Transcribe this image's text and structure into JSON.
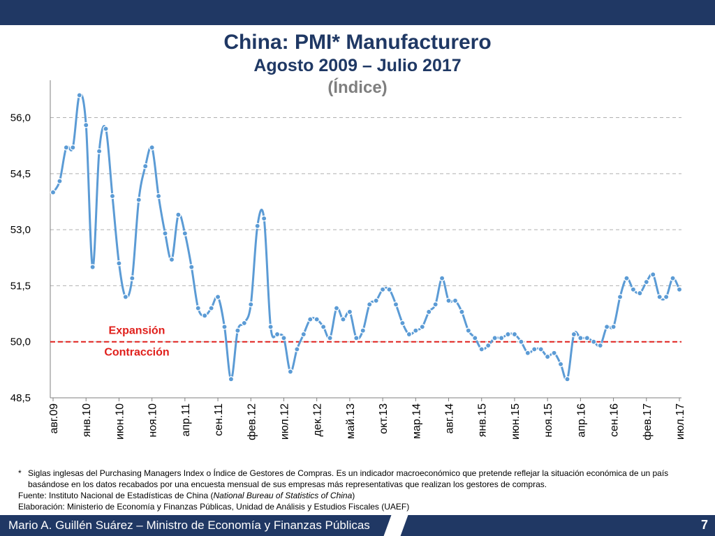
{
  "header": {
    "title": "China: PMI* Manufacturero",
    "subtitle": "Agosto 2009 – Julio 2017",
    "unit": "(Índice)"
  },
  "notes": {
    "star": "*",
    "definition": "Siglas inglesas del Purchasing Managers Index o  Índice de Gestores de Compras. Es un indicador macroeconómico que pretende reflejar la situación económica de un país basándose en los datos recabados por una encuesta mensual de sus empresas más representativas que realizan los gestores de compras.",
    "source_prefix": "Fuente: Instituto Nacional de Estadísticas de China (",
    "source_italic": "National Bureau of Statistics of China",
    "source_suffix": ")",
    "elaboration": "Elaboración: Ministerio de Economía y Finanzas Públicas, Unidad de Análisis y Estudios Fiscales (UAEF)"
  },
  "footer": {
    "author": "Mario A. Guillén Suárez – Ministro de Economía y Finanzas Públicas",
    "page": "7"
  },
  "colors": {
    "line": "#5b9bd5",
    "marker_fill": "#5b9bd5",
    "marker_stroke": "#ffffff",
    "threshold": "#e0201c",
    "title": "#1f3864",
    "bar": "#203864"
  },
  "chart_data": {
    "type": "line",
    "ylim": [
      48.5,
      57.0
    ],
    "yticks": [
      "48,5",
      "50,0",
      "51,5",
      "53,0",
      "54,5",
      "56,0"
    ],
    "ytick_values": [
      48.5,
      50.0,
      51.5,
      53.0,
      54.5,
      56.0
    ],
    "grid": "horizontal dashed",
    "xtick_labels": [
      "авг.09",
      "янв.10",
      "июн.10",
      "ноя.10",
      "апр.11",
      "сен.11",
      "фев.12",
      "июл.12",
      "дек.12",
      "май.13",
      "окт.13",
      "мар.14",
      "авг.14",
      "янв.15",
      "июн.15",
      "ноя.15",
      "апр.16",
      "сен.16",
      "фев.17",
      "июл.17"
    ],
    "xtick_index_step": 5,
    "threshold": {
      "value": 50.0,
      "label_above": "Expansión",
      "label_below": "Contracción"
    },
    "series": [
      {
        "values": [
          54.0,
          54.3,
          55.2,
          55.2,
          56.6,
          55.8,
          52.0,
          55.1,
          55.7,
          53.9,
          52.1,
          51.2,
          51.7,
          53.8,
          54.7,
          55.2,
          53.9,
          52.9,
          52.2,
          53.4,
          52.9,
          52.0,
          50.9,
          50.7,
          50.9,
          51.2,
          50.4,
          49.0,
          50.3,
          50.5,
          51.0,
          53.1,
          53.3,
          50.4,
          50.2,
          50.1,
          49.2,
          49.8,
          50.2,
          50.6,
          50.6,
          50.4,
          50.1,
          50.9,
          50.6,
          50.8,
          50.1,
          50.3,
          51.0,
          51.1,
          51.4,
          51.4,
          51.0,
          50.5,
          50.2,
          50.3,
          50.4,
          50.8,
          51.0,
          51.7,
          51.1,
          51.1,
          50.8,
          50.3,
          50.1,
          49.8,
          49.9,
          50.1,
          50.1,
          50.2,
          50.2,
          50.0,
          49.7,
          49.8,
          49.8,
          49.6,
          49.7,
          49.4,
          49.0,
          50.2,
          50.1,
          50.1,
          50.0,
          49.9,
          50.4,
          50.4,
          51.2,
          51.7,
          51.4,
          51.3,
          51.6,
          51.8,
          51.2,
          51.2,
          51.7,
          51.4
        ]
      }
    ]
  }
}
